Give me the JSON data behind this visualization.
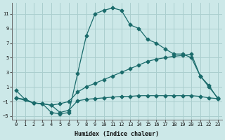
{
  "xlabel": "Humidex (Indice chaleur)",
  "background_color": "#cce8e8",
  "grid_color": "#aacece",
  "line_color": "#1a6b6b",
  "marker": "D",
  "markersize": 2.5,
  "linewidth": 0.9,
  "xlim": [
    -0.5,
    23.5
  ],
  "ylim": [
    -3.5,
    12.5
  ],
  "xticks": [
    0,
    1,
    2,
    3,
    4,
    5,
    6,
    7,
    8,
    9,
    10,
    11,
    12,
    13,
    14,
    15,
    16,
    17,
    18,
    19,
    20,
    21,
    22,
    23
  ],
  "yticks": [
    -3,
    -1,
    1,
    3,
    5,
    7,
    9,
    11
  ],
  "lines": [
    {
      "x": [
        0,
        1,
        2,
        3,
        4,
        5,
        6,
        7,
        8,
        9,
        10,
        11,
        12,
        13,
        14,
        15,
        16,
        17,
        18,
        19,
        20,
        21,
        22,
        23
      ],
      "y": [
        0.5,
        -0.7,
        -1.2,
        -1.3,
        -2.5,
        -2.7,
        -2.5,
        2.8,
        8.0,
        11.0,
        11.5,
        11.8,
        11.5,
        9.5,
        9.0,
        7.5,
        7.0,
        6.2,
        5.5,
        5.5,
        5.0,
        2.5,
        1.0,
        -0.5
      ]
    },
    {
      "x": [
        0,
        1,
        2,
        3,
        4,
        5,
        6,
        7,
        8,
        9,
        10,
        11,
        12,
        13,
        14,
        15,
        16,
        17,
        18,
        19,
        20,
        21,
        22,
        23
      ],
      "y": [
        -0.5,
        -0.7,
        -1.2,
        -1.3,
        -1.5,
        -2.5,
        -2.2,
        -0.9,
        -0.7,
        -0.6,
        -0.5,
        -0.4,
        -0.3,
        -0.3,
        -0.2,
        -0.2,
        -0.2,
        -0.2,
        -0.2,
        -0.2,
        -0.2,
        -0.3,
        -0.5,
        -0.6
      ]
    },
    {
      "x": [
        0,
        2,
        3,
        4,
        5,
        6,
        7,
        8,
        9,
        10,
        11,
        12,
        13,
        14,
        15,
        16,
        17,
        18,
        19,
        20,
        21,
        22,
        23
      ],
      "y": [
        -0.5,
        -1.2,
        -1.3,
        -1.5,
        -1.3,
        -1.0,
        0.3,
        1.0,
        1.5,
        2.0,
        2.5,
        3.0,
        3.5,
        4.0,
        4.5,
        4.8,
        5.0,
        5.2,
        5.3,
        5.5,
        2.5,
        1.2,
        -0.6
      ]
    }
  ]
}
